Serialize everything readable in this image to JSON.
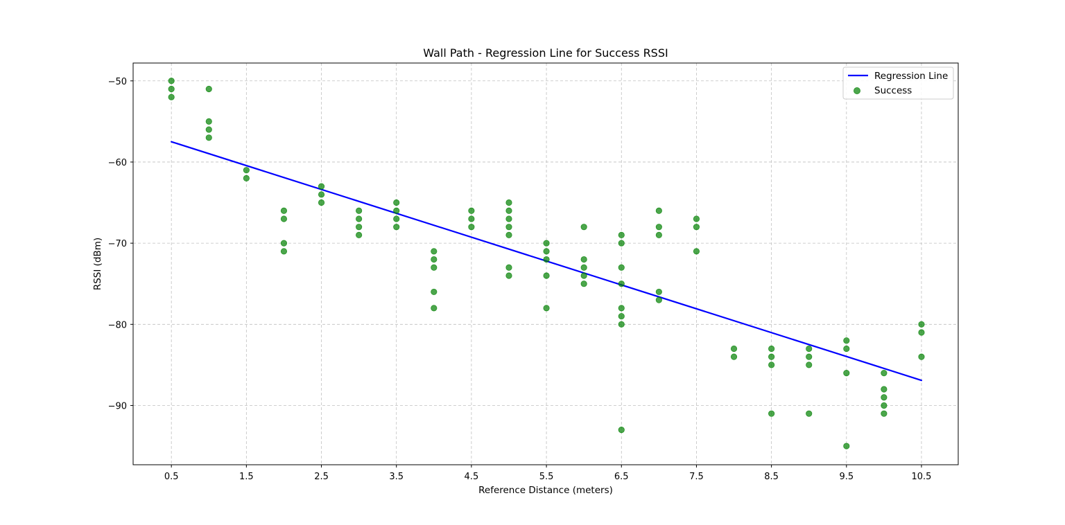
{
  "chart_data": {
    "type": "scatter",
    "title": "Wall Path - Regression Line for Success RSSI",
    "xlabel": "Reference Distance (meters)",
    "ylabel": "RSSI (dBm)",
    "xlim": [
      -0.01,
      10.99
    ],
    "ylim": [
      -97.3,
      -47.8
    ],
    "x_ticks": [
      0.5,
      1.5,
      2.5,
      3.5,
      4.5,
      5.5,
      6.5,
      7.5,
      8.5,
      9.5,
      10.5
    ],
    "x_tick_labels": [
      "0.5",
      "1.5",
      "2.5",
      "3.5",
      "4.5",
      "5.5",
      "6.5",
      "7.5",
      "8.5",
      "9.5",
      "10.5"
    ],
    "y_ticks": [
      -50,
      -60,
      -70,
      -80,
      -90
    ],
    "y_tick_labels": [
      "−50",
      "−60",
      "−70",
      "−80",
      "−90"
    ],
    "grid": true,
    "legend_position": "top-right",
    "series": [
      {
        "name": "Regression Line",
        "kind": "line",
        "color": "#0000ff",
        "x": [
          0.5,
          10.5
        ],
        "y": [
          -57.5,
          -86.9
        ]
      },
      {
        "name": "Success",
        "kind": "scatter",
        "color": "#008000",
        "points": [
          [
            0.5,
            -50
          ],
          [
            0.5,
            -51
          ],
          [
            0.5,
            -52
          ],
          [
            1.0,
            -51
          ],
          [
            1.0,
            -55
          ],
          [
            1.0,
            -56
          ],
          [
            1.0,
            -57
          ],
          [
            1.5,
            -61
          ],
          [
            1.5,
            -62
          ],
          [
            2.0,
            -66
          ],
          [
            2.0,
            -67
          ],
          [
            2.0,
            -70
          ],
          [
            2.0,
            -71
          ],
          [
            2.5,
            -63
          ],
          [
            2.5,
            -64
          ],
          [
            2.5,
            -65
          ],
          [
            3.0,
            -66
          ],
          [
            3.0,
            -67
          ],
          [
            3.0,
            -68
          ],
          [
            3.0,
            -69
          ],
          [
            3.5,
            -65
          ],
          [
            3.5,
            -66
          ],
          [
            3.5,
            -67
          ],
          [
            3.5,
            -68
          ],
          [
            4.0,
            -71
          ],
          [
            4.0,
            -72
          ],
          [
            4.0,
            -73
          ],
          [
            4.0,
            -76
          ],
          [
            4.0,
            -78
          ],
          [
            4.5,
            -66
          ],
          [
            4.5,
            -67
          ],
          [
            4.5,
            -68
          ],
          [
            5.0,
            -65
          ],
          [
            5.0,
            -66
          ],
          [
            5.0,
            -67
          ],
          [
            5.0,
            -68
          ],
          [
            5.0,
            -69
          ],
          [
            5.0,
            -73
          ],
          [
            5.0,
            -74
          ],
          [
            5.5,
            -70
          ],
          [
            5.5,
            -71
          ],
          [
            5.5,
            -72
          ],
          [
            5.5,
            -74
          ],
          [
            5.5,
            -78
          ],
          [
            6.0,
            -68
          ],
          [
            6.0,
            -72
          ],
          [
            6.0,
            -73
          ],
          [
            6.0,
            -74
          ],
          [
            6.0,
            -75
          ],
          [
            6.5,
            -69
          ],
          [
            6.5,
            -70
          ],
          [
            6.5,
            -73
          ],
          [
            6.5,
            -75
          ],
          [
            6.5,
            -78
          ],
          [
            6.5,
            -79
          ],
          [
            6.5,
            -80
          ],
          [
            6.5,
            -93
          ],
          [
            7.0,
            -66
          ],
          [
            7.0,
            -68
          ],
          [
            7.0,
            -69
          ],
          [
            7.0,
            -76
          ],
          [
            7.0,
            -77
          ],
          [
            7.5,
            -67
          ],
          [
            7.5,
            -68
          ],
          [
            7.5,
            -71
          ],
          [
            8.0,
            -83
          ],
          [
            8.0,
            -84
          ],
          [
            8.5,
            -83
          ],
          [
            8.5,
            -84
          ],
          [
            8.5,
            -85
          ],
          [
            8.5,
            -91
          ],
          [
            9.0,
            -83
          ],
          [
            9.0,
            -84
          ],
          [
            9.0,
            -85
          ],
          [
            9.0,
            -91
          ],
          [
            9.5,
            -82
          ],
          [
            9.5,
            -83
          ],
          [
            9.5,
            -86
          ],
          [
            9.5,
            -95
          ],
          [
            10.0,
            -86
          ],
          [
            10.0,
            -88
          ],
          [
            10.0,
            -89
          ],
          [
            10.0,
            -90
          ],
          [
            10.0,
            -91
          ],
          [
            10.5,
            -80
          ],
          [
            10.5,
            -81
          ],
          [
            10.5,
            -84
          ]
        ]
      }
    ]
  }
}
